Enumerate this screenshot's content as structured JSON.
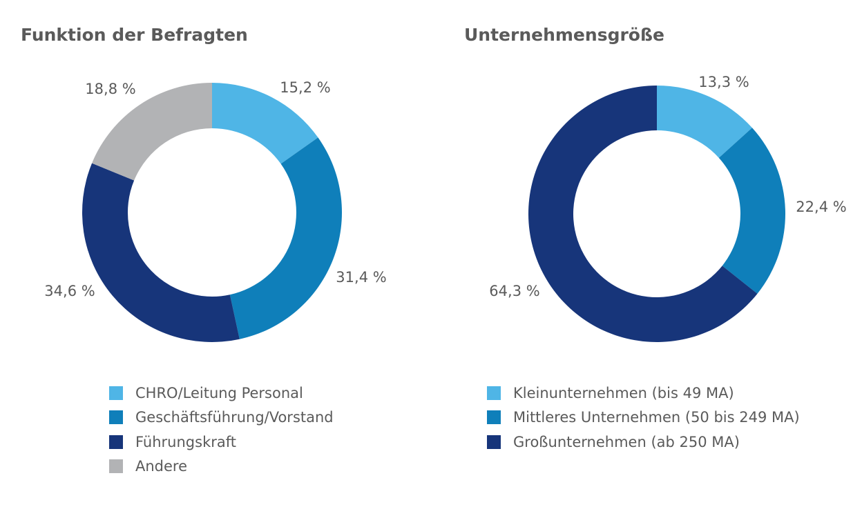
{
  "chart_data": [
    {
      "type": "pie",
      "title": "Funktion der Befragten",
      "donut": true,
      "slices": [
        {
          "name": "CHRO/Leitung Personal",
          "value": 15.2,
          "label": "15,2 %",
          "color": "#4fb5e6"
        },
        {
          "name": "Geschäftsführung/Vorstand",
          "value": 31.4,
          "label": "31,4 %",
          "color": "#0f7fba"
        },
        {
          "name": "Führungskraft",
          "value": 34.6,
          "label": "34,6 %",
          "color": "#17357a"
        },
        {
          "name": "Andere",
          "value": 18.8,
          "label": "18,8 %",
          "color": "#b2b3b5"
        }
      ],
      "legend_position": "bottom"
    },
    {
      "type": "pie",
      "title": "Unternehmensgröße",
      "donut": true,
      "slices": [
        {
          "name": "Kleinunternehmen (bis 49 MA)",
          "value": 13.3,
          "label": "13,3 %",
          "color": "#4fb5e6"
        },
        {
          "name": "Mittleres Unternehmen (50 bis 249 MA)",
          "value": 22.4,
          "label": "22,4 %",
          "color": "#0f7fba"
        },
        {
          "name": "Großunternehmen (ab 250 MA)",
          "value": 64.3,
          "label": "64,3 %",
          "color": "#17357a"
        }
      ],
      "legend_position": "bottom"
    }
  ]
}
